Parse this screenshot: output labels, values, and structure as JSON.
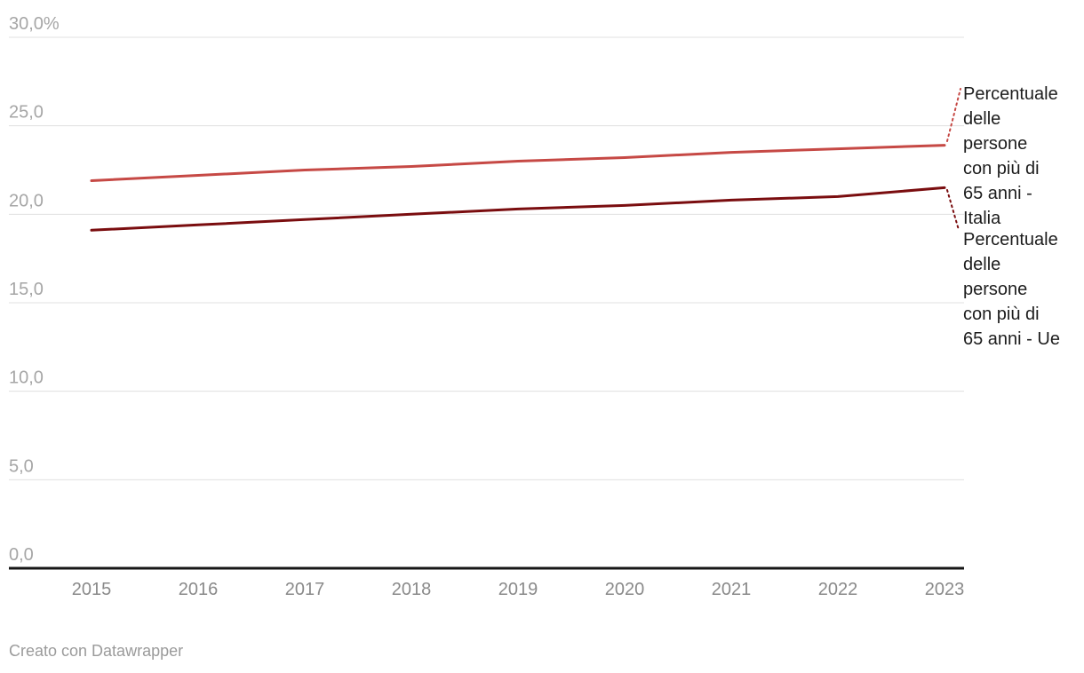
{
  "chart_data": {
    "type": "line",
    "title": "",
    "x": [
      2015,
      2016,
      2017,
      2018,
      2019,
      2020,
      2021,
      2022,
      2023
    ],
    "x_ticks": [
      "2015",
      "2016",
      "2017",
      "2018",
      "2019",
      "2020",
      "2021",
      "2022",
      "2023"
    ],
    "series": [
      {
        "name": "Percentuale delle persone con più di 65 anni - Italia",
        "label_lines": [
          "Percentuale",
          "delle",
          "persone",
          "con più di",
          "65 anni -",
          "Italia"
        ],
        "color": "#c64945",
        "values": [
          21.9,
          22.2,
          22.5,
          22.7,
          23.0,
          23.2,
          23.5,
          23.7,
          23.9
        ]
      },
      {
        "name": "Percentuale delle persone con più di 65 anni - Ue",
        "label_lines": [
          "Percentuale",
          "delle",
          "persone",
          "con più di",
          "65 anni - Ue"
        ],
        "color": "#7a0d0f",
        "values": [
          19.1,
          19.4,
          19.7,
          20.0,
          20.3,
          20.5,
          20.8,
          21.0,
          21.5
        ]
      }
    ],
    "y_ticks": [
      {
        "value": 30,
        "label": "30,0%"
      },
      {
        "value": 25,
        "label": "25,0"
      },
      {
        "value": 20,
        "label": "20,0"
      },
      {
        "value": 15,
        "label": "15,0"
      },
      {
        "value": 10,
        "label": "10,0"
      },
      {
        "value": 5,
        "label": "5,0"
      },
      {
        "value": 0,
        "label": "0,0"
      }
    ],
    "ylim": [
      0,
      30
    ],
    "unit": "%",
    "grid": true,
    "legend_position": "right-annotations"
  },
  "colors": {
    "grid": "#e0e0e0",
    "axis": "#161616",
    "y_tick_text": "#a6a6a6",
    "x_tick_text": "#8a8a8a",
    "annotation_text": "#1d1d1d",
    "credit_text": "#9b9b9b"
  },
  "footer": {
    "credit": "Creato con Datawrapper"
  }
}
